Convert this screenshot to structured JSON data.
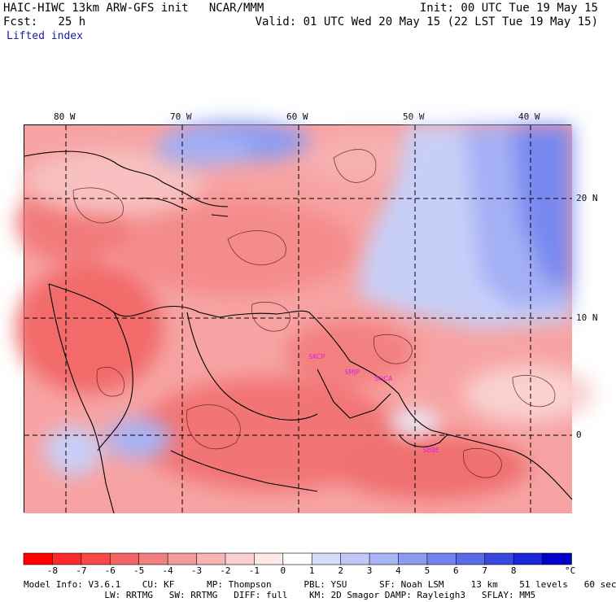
{
  "header": {
    "left_line1": "HAIC-HIWC 13km ARW-GFS init   NCAR/MMM",
    "left_line2": "Fcst:   25 h",
    "right_line1": "Init: 00 UTC Tue 19 May 15",
    "right_line2": "Valid: 01 UTC Wed 20 May 15 (22 LST Tue 19 May 15)",
    "field_name": "Lifted index"
  },
  "map": {
    "lon_labels": [
      "80 W",
      "70 W",
      "60 W",
      "50 W",
      "40 W"
    ],
    "lat_labels": [
      "20 N",
      "10 N",
      "0"
    ],
    "stations": [
      "SKCP",
      "SMJP",
      "SOCA",
      "SBBE"
    ],
    "colors": {
      "strong_neg": "#f24a4a",
      "mid_neg": "#f58a8a",
      "weak_neg": "#f9c2c2",
      "neutral": "#ffffff",
      "weak_pos": "#c8d0f8",
      "mid_pos": "#8c9cf2",
      "strong_pos": "#5a6be8",
      "station_label": "#e020e0"
    }
  },
  "colorbar": {
    "ticks": [
      "-8",
      "-7",
      "-6",
      "-5",
      "-4",
      "-3",
      "-2",
      "-1",
      "0",
      "1",
      "2",
      "3",
      "4",
      "5",
      "6",
      "7",
      "8"
    ],
    "unit": "°C",
    "colors": [
      "#ff0000",
      "#fc2a2a",
      "#f84848",
      "#f46464",
      "#f28080",
      "#f59a9a",
      "#f8b4b4",
      "#fbcfcf",
      "#ffe8e8",
      "#fefefe",
      "#d8dcfa",
      "#c0c8f8",
      "#a8b4f5",
      "#8c9cf2",
      "#7484ef",
      "#5a6be8",
      "#3a48e0",
      "#1a24d8",
      "#0000c8"
    ]
  },
  "footer": {
    "line1": "Model Info: V3.6.1    CU: KF      MP: Thompson      PBL: YSU      SF: Noah LSM     13 km    51 levels   60 sec",
    "line2": "               LW: RRTMG   SW: RRTMG   DIFF: full    KM: 2D Smagor DAMP: Rayleigh3   SFLAY: MM5"
  }
}
